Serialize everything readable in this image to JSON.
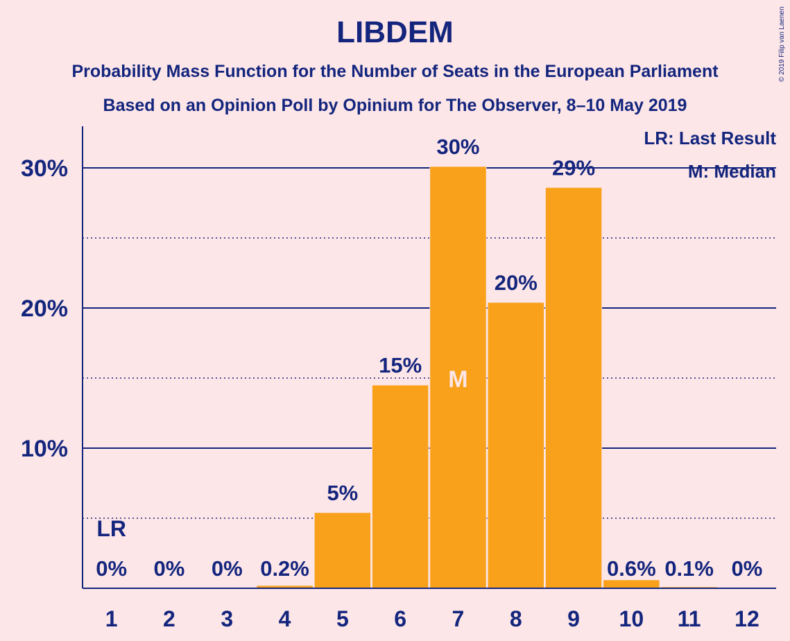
{
  "title": "LIBDEM",
  "subtitle_line1": "Probability Mass Function for the Number of Seats in the European Parliament",
  "subtitle_line2": "Based on an Opinion Poll by Opinium for The Observer, 8–10 May 2019",
  "copyright": "© 2019 Filip van Laenen",
  "legend": {
    "last_result": "LR: Last Result",
    "median": "M: Median"
  },
  "colors": {
    "bar": "#f9a11b",
    "text": "#13257d",
    "background": "#fde6e8",
    "median_label": "#fde6e8"
  },
  "chart_data": {
    "type": "bar",
    "categories": [
      "1",
      "2",
      "3",
      "4",
      "5",
      "6",
      "7",
      "8",
      "9",
      "10",
      "11",
      "12"
    ],
    "values": [
      0,
      0,
      0,
      0.2,
      5.4,
      14.5,
      30.1,
      20.4,
      28.6,
      0.6,
      0.1,
      0
    ],
    "labels": [
      "0%",
      "0%",
      "0%",
      "0.2%",
      "5%",
      "15%",
      "30%",
      "20%",
      "29%",
      "0.6%",
      "0.1%",
      "0%"
    ],
    "yticks": [
      10,
      20,
      30
    ],
    "ytick_labels": [
      "10%",
      "20%",
      "30%"
    ],
    "dotted_gridlines": [
      5,
      15,
      25
    ],
    "ylim": [
      0,
      33
    ],
    "last_result_category": "1",
    "last_result_marker": "LR",
    "median_category": "7",
    "median_marker": "M",
    "xlabel": "",
    "ylabel": ""
  }
}
